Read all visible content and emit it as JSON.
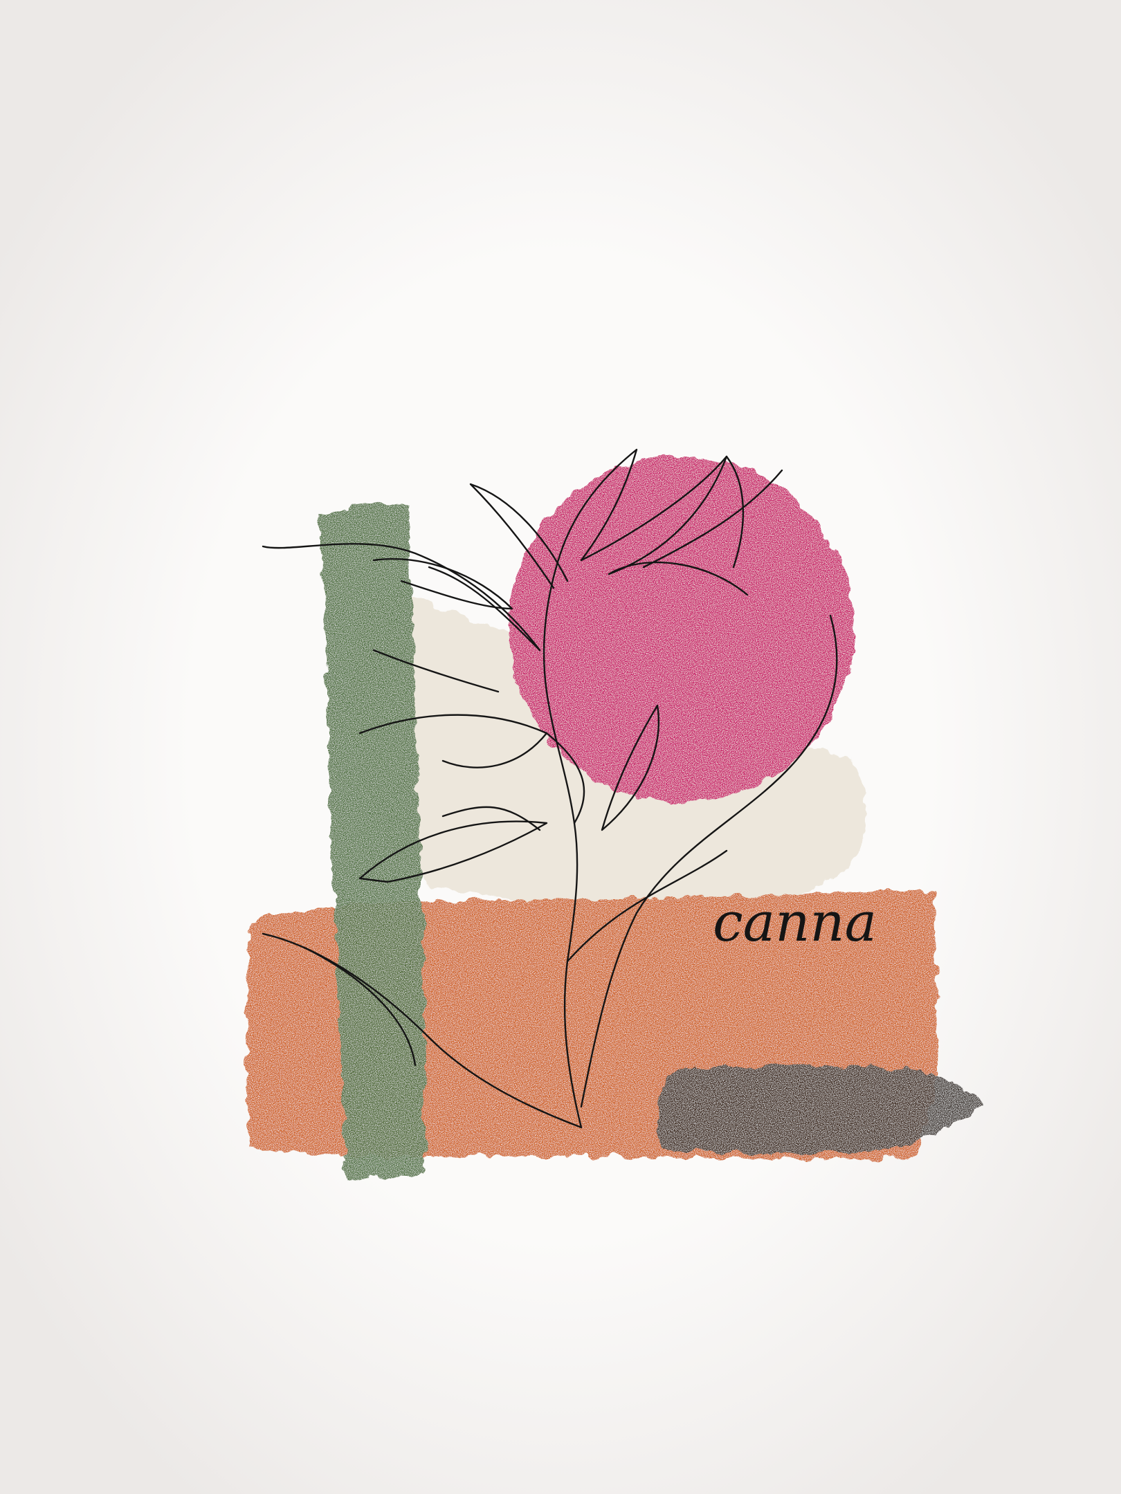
{
  "artwork": {
    "caption": "canna",
    "colors": {
      "background": "#fbfaf9",
      "vignette": "#e9e6e4",
      "sun_pink": "#c9246a",
      "green_stroke": "#4a6b38",
      "cream_wash": "#ede7dc",
      "orange_block": "#cf6428",
      "charcoal_smudge": "#2b2320",
      "line_ink": "#151515"
    },
    "icons": {
      "flower": "canna-line-drawing",
      "sun": "pink-circle-icon",
      "smudge": "charcoal-smudge-icon"
    }
  }
}
